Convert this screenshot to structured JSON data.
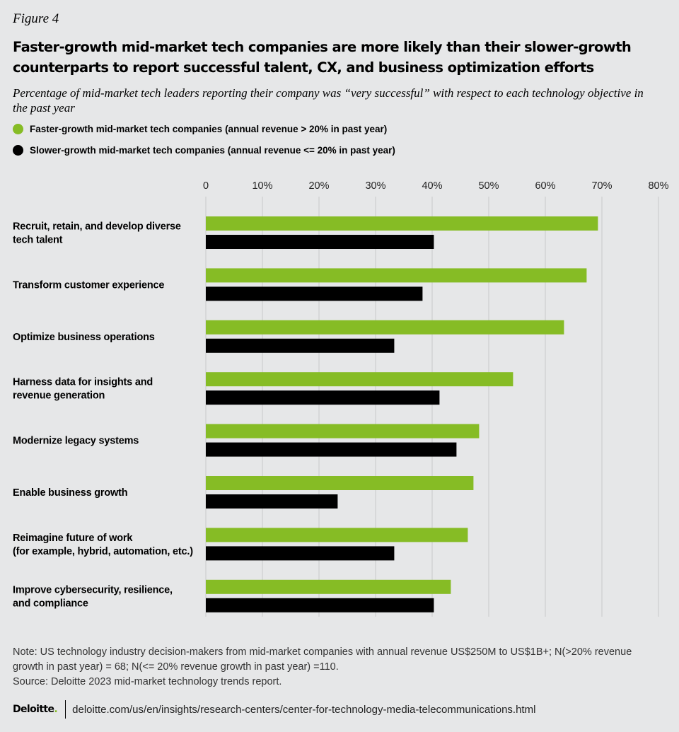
{
  "figure_label": "Figure 4",
  "title": "Faster-growth mid-market tech companies are more likely than their slower-growth counterparts to report successful talent, CX, and business optimization efforts",
  "subtitle": "Percentage of mid-market tech leaders reporting their company was “very successful” with respect to each technology objective in the past year",
  "colors": {
    "faster": "#86bc25",
    "slower": "#000000",
    "grid": "#c8c9ca",
    "background": "#e6e7e8"
  },
  "chart_data": {
    "type": "bar",
    "orientation": "horizontal",
    "title": "Faster-growth mid-market tech companies are more likely than their slower-growth counterparts to report successful talent, CX, and business optimization efforts",
    "xlabel": "",
    "ylabel": "",
    "xlim": [
      0,
      80
    ],
    "ticks": [
      "0",
      "10%",
      "20%",
      "30%",
      "40%",
      "50%",
      "60%",
      "70%",
      "80%"
    ],
    "tick_values": [
      0,
      10,
      20,
      30,
      40,
      50,
      60,
      70,
      80
    ],
    "grid": true,
    "legend_position": "top-left",
    "categories": [
      [
        "Recruit, retain, and develop diverse",
        "tech talent"
      ],
      [
        "Transform customer experience"
      ],
      [
        "Optimize business operations"
      ],
      [
        "Harness data for insights and",
        "revenue generation"
      ],
      [
        "Modernize legacy systems"
      ],
      [
        "Enable business growth"
      ],
      [
        "Reimagine future of work",
        "(for example, hybrid, automation, etc.)"
      ],
      [
        "Improve cybersecurity, resilience,",
        "and compliance"
      ]
    ],
    "series": [
      {
        "name": "Faster-growth mid-market tech companies (annual revenue > 20% in past year)",
        "color": "#86bc25",
        "values": [
          69.3,
          67.3,
          63.3,
          54.3,
          48.3,
          47.3,
          46.3,
          43.3
        ]
      },
      {
        "name": "Slower-growth mid-market tech companies (annual revenue <= 20% in past year)",
        "color": "#000000",
        "values": [
          40.3,
          38.3,
          33.3,
          41.3,
          44.3,
          23.3,
          33.3,
          40.3
        ]
      }
    ]
  },
  "note": "Note: US technology industry decision-makers from mid-market companies with annual revenue US$250M to US$1B+; N(>20% revenue growth in past year) = 68; N(<= 20% revenue growth in past year) =110.",
  "source": "Source: Deloitte 2023 mid-market technology trends report.",
  "brand": "Deloitte",
  "brand_dot": ".",
  "url": "deloitte.com/us/en/insights/research-centers/center-for-technology-media-telecommunications.html"
}
